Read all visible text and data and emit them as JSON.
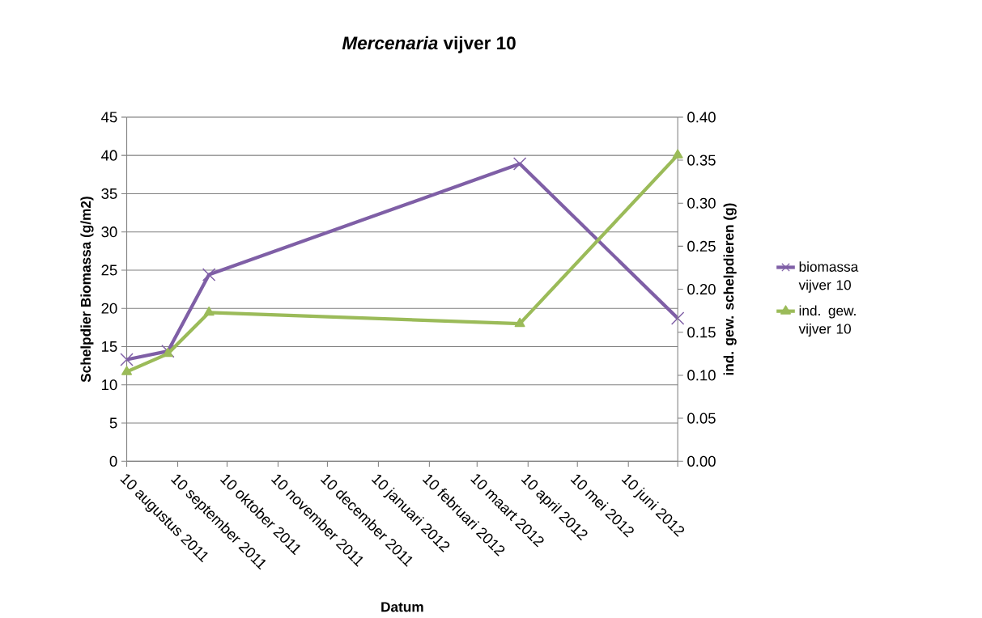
{
  "chart_data": {
    "type": "line",
    "title": "*Mercenaria* vijver 10",
    "xlabel": "Datum",
    "ylabel": "Schelpdier Biomassa (g/m2)",
    "y2label": "ind. gew. schelpdieren (g)",
    "x": [
      "2011-08-10",
      "2011-09-04",
      "2011-09-29",
      "2012-04-05",
      "2012-07-10"
    ],
    "series": [
      {
        "name": "biomassa vijver 10",
        "color": "#7f5fa6",
        "marker": "cross",
        "values": [
          13.3,
          14.4,
          24.4,
          38.9,
          18.7
        ]
      },
      {
        "name": "ind. gew. vijver 10",
        "color": "#9bbb59",
        "marker": "triangle",
        "axis": "y2",
        "values": [
          0.104,
          0.125,
          0.173,
          0.16,
          0.356
        ]
      }
    ],
    "xlim": [
      "2011-08-10",
      "2012-07-10"
    ],
    "xticks": [
      {
        "value": "2011-08-10",
        "label": "10 augustus 2011"
      },
      {
        "value": "2011-09-10",
        "label": "10 september 2011"
      },
      {
        "value": "2011-10-10",
        "label": "10 oktober 2011"
      },
      {
        "value": "2011-11-10",
        "label": "10 november 2011"
      },
      {
        "value": "2011-12-10",
        "label": "10 december 2011"
      },
      {
        "value": "2012-01-10",
        "label": "10 januari 2012"
      },
      {
        "value": "2012-02-10",
        "label": "10 februari 2012"
      },
      {
        "value": "2012-03-10",
        "label": "10 maart 2012"
      },
      {
        "value": "2012-04-10",
        "label": "10 april 2012"
      },
      {
        "value": "2012-05-10",
        "label": "10 mei 2012"
      },
      {
        "value": "2012-06-10",
        "label": "10 juni 2012"
      },
      {
        "value": "2012-07-10",
        "label": null
      }
    ],
    "ylim": [
      0,
      45
    ],
    "yticks": [
      0,
      5,
      10,
      15,
      20,
      25,
      30,
      35,
      40,
      45
    ],
    "y2lim": [
      0,
      0.4
    ],
    "y2ticks": [
      {
        "value": 0,
        "label": "0.00"
      },
      {
        "value": 0.05,
        "label": "0.05"
      },
      {
        "value": 0.1,
        "label": "0.10"
      },
      {
        "value": 0.15,
        "label": "0.15"
      },
      {
        "value": 0.2,
        "label": "0.20"
      },
      {
        "value": 0.25,
        "label": "0.25"
      },
      {
        "value": 0.3,
        "label": "0.30"
      },
      {
        "value": 0.35,
        "label": "0.35"
      },
      {
        "value": 0.4,
        "label": "0.40"
      }
    ],
    "grid": "y",
    "legend": "right"
  }
}
